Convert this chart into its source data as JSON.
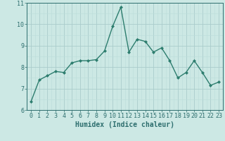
{
  "x": [
    0,
    1,
    2,
    3,
    4,
    5,
    6,
    7,
    8,
    9,
    10,
    11,
    12,
    13,
    14,
    15,
    16,
    17,
    18,
    19,
    20,
    21,
    22,
    23
  ],
  "y": [
    6.4,
    7.4,
    7.6,
    7.8,
    7.75,
    8.2,
    8.3,
    8.3,
    8.35,
    8.75,
    9.9,
    10.8,
    8.7,
    9.3,
    9.2,
    8.7,
    8.9,
    8.3,
    7.5,
    7.75,
    8.3,
    7.75,
    7.15,
    7.3
  ],
  "line_color": "#2d7d6e",
  "marker": "D",
  "marker_size": 2,
  "bg_color": "#cce8e4",
  "grid_major_color": "#aacccc",
  "grid_minor_color": "#bbddda",
  "xlabel": "Humidex (Indice chaleur)",
  "ylim": [
    6,
    11
  ],
  "xlim": [
    -0.5,
    23.5
  ],
  "yticks": [
    6,
    7,
    8,
    9,
    10,
    11
  ],
  "xticks": [
    0,
    1,
    2,
    3,
    4,
    5,
    6,
    7,
    8,
    9,
    10,
    11,
    12,
    13,
    14,
    15,
    16,
    17,
    18,
    19,
    20,
    21,
    22,
    23
  ],
  "tick_color": "#2d6e6e",
  "xlabel_fontsize": 7,
  "tick_fontsize": 6,
  "linewidth": 1.0
}
